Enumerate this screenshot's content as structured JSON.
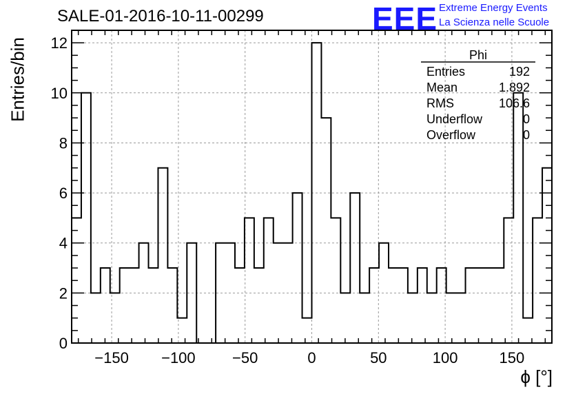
{
  "chart_data": {
    "type": "bar",
    "title": "SALE-01-2016-10-11-00299",
    "xlabel": "ϕ [°]",
    "ylabel": "Entries/bin",
    "xlim": [
      -180,
      180
    ],
    "ylim": [
      0,
      12.5
    ],
    "x_bin_width": 7.2,
    "grid": true,
    "x_ticks": [
      -150,
      -100,
      -50,
      0,
      50,
      100,
      150
    ],
    "y_ticks": [
      0,
      2,
      4,
      6,
      8,
      10,
      12
    ],
    "values": [
      5,
      10,
      2,
      3,
      2,
      3,
      3,
      4,
      3,
      7,
      3,
      1,
      4,
      0,
      0,
      4,
      4,
      3,
      5,
      3,
      5,
      4,
      4,
      6,
      1,
      12,
      9,
      5,
      2,
      6,
      2,
      3,
      4,
      3,
      3,
      2,
      3,
      2,
      3,
      2,
      2,
      3,
      3,
      3,
      3,
      5,
      10,
      1,
      5,
      7
    ],
    "stats": {
      "name": "Phi",
      "rows": [
        {
          "label": "Entries",
          "value": "192"
        },
        {
          "label": "Mean",
          "value": "1.892"
        },
        {
          "label": "RMS",
          "value": "106.6"
        },
        {
          "label": "Underflow",
          "value": "0"
        },
        {
          "label": "Overflow",
          "value": "0"
        }
      ]
    }
  },
  "logo": {
    "mark": "EEE",
    "line1": "Extreme Energy Events",
    "line2": "La Scienza nelle Scuole",
    "color": "#1a1aff"
  }
}
